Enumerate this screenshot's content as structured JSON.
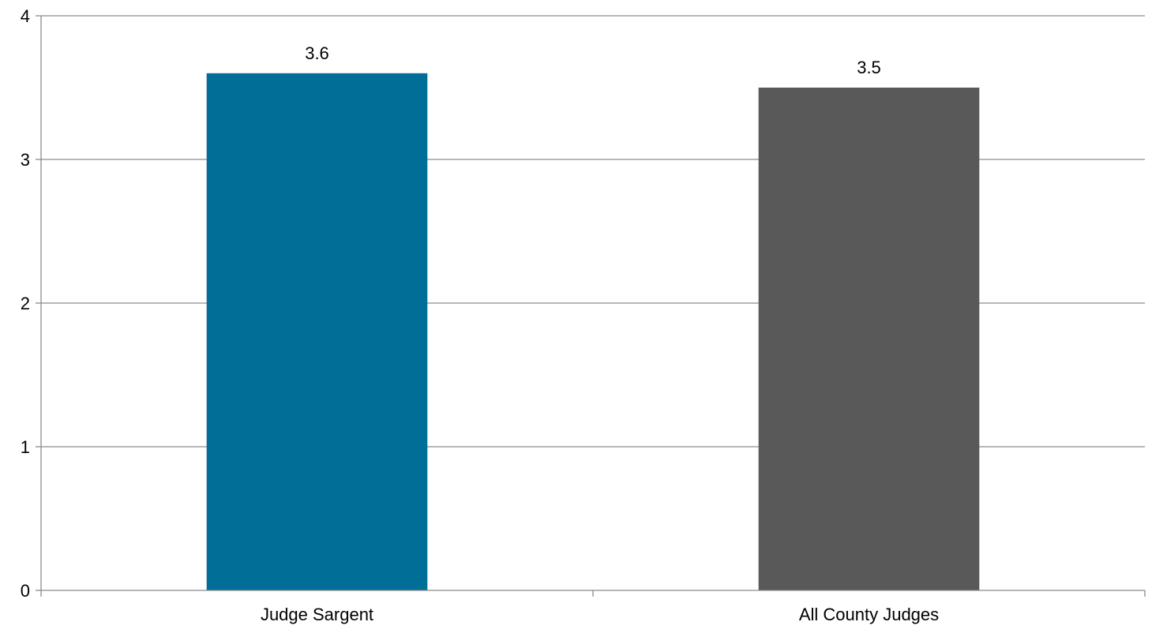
{
  "chart_data": {
    "type": "bar",
    "categories": [
      "Judge Sargent",
      "All County Judges"
    ],
    "values": [
      3.6,
      3.5
    ],
    "data_labels": [
      "3.6",
      "3.5"
    ],
    "bar_colors": [
      "#006E96",
      "#595959"
    ],
    "ylim": [
      0,
      4
    ],
    "yticks": [
      "0",
      "1",
      "2",
      "3",
      "4"
    ],
    "grid": true,
    "legend": "none"
  }
}
